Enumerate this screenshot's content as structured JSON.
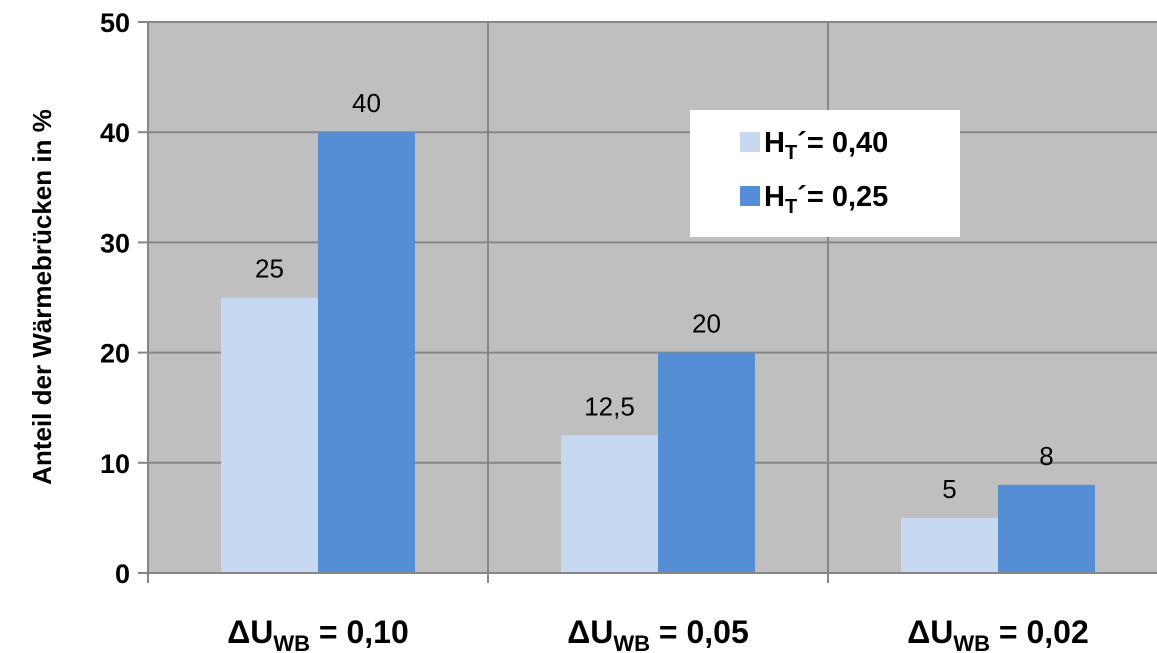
{
  "chart_data": {
    "type": "bar",
    "title": "",
    "ylabel": "Anteil der Wärmebrücken in %",
    "xlabel": "",
    "ylim": [
      0,
      50
    ],
    "yticks": [
      0,
      10,
      20,
      30,
      40,
      50
    ],
    "grid": true,
    "legend_position": "top-right",
    "categories": [
      {
        "prefix": "ΔU",
        "sub": "WB",
        "suffix": " = 0,10"
      },
      {
        "prefix": "ΔU",
        "sub": "WB",
        "suffix": " = 0,05"
      },
      {
        "prefix": "ΔU",
        "sub": "WB",
        "suffix": " = 0,02"
      }
    ],
    "series": [
      {
        "name": {
          "prefix": "H",
          "sub": "T",
          "suffix": "´= 0,40"
        },
        "color": "#c6d9f1",
        "values": [
          25,
          12.5,
          5
        ],
        "labels": [
          "25",
          "12,5",
          "5"
        ]
      },
      {
        "name": {
          "prefix": "H",
          "sub": "T",
          "suffix": "´= 0,25"
        },
        "color": "#558ed5",
        "values": [
          40,
          20,
          8
        ],
        "labels": [
          "40",
          "20",
          "8"
        ]
      }
    ],
    "colors": {
      "plot_background": "#bfbfbf",
      "grid": "#868686",
      "axis": "#868686",
      "legend_background": "#ffffff"
    }
  }
}
